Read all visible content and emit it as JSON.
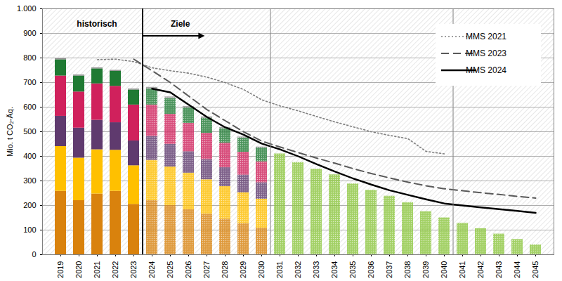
{
  "chart_data": {
    "type": "bar",
    "stacked": true,
    "y_label": "Mio. t CO₂-Äq.",
    "categories": [
      "2019",
      "2020",
      "2021",
      "2022",
      "2023",
      "2024",
      "2025",
      "2026",
      "2027",
      "2028",
      "2029",
      "2030",
      "2031",
      "2032",
      "2033",
      "2034",
      "2035",
      "2036",
      "2037",
      "2038",
      "2039",
      "2040",
      "2041",
      "2042",
      "2043",
      "2044",
      "2045"
    ],
    "ylim": [
      0,
      1000
    ],
    "yticks": [
      0,
      100,
      200,
      300,
      400,
      500,
      600,
      700,
      800,
      900,
      {
        "value": 1000,
        "label": "1.000"
      }
    ],
    "grid": true,
    "legend": "upper right",
    "periods": [
      {
        "label": "historisch",
        "from": "2019",
        "to": "2023"
      },
      {
        "label": "Ziele",
        "from": "2024",
        "to": "2030"
      }
    ],
    "dividers": [
      "2030",
      "2040"
    ],
    "series": [
      {
        "type": "bar",
        "color": "#d9820d",
        "values": [
          258,
          220,
          247,
          258,
          205,
          220,
          200,
          183,
          165,
          145,
          127,
          108,
          null,
          null,
          null,
          null,
          null,
          null,
          null,
          null,
          null,
          null,
          null,
          null,
          null,
          null,
          null
        ]
      },
      {
        "type": "bar",
        "color": "#ffc000",
        "values": [
          182,
          173,
          180,
          167,
          157,
          164,
          157,
          149,
          140,
          132,
          125,
          118,
          null,
          null,
          null,
          null,
          null,
          null,
          null,
          null,
          null,
          null,
          null,
          null,
          null,
          null,
          null
        ]
      },
      {
        "type": "bar",
        "color": "#5f3a6e",
        "values": [
          123,
          122,
          120,
          112,
          101,
          97,
          92,
          87,
          82,
          77,
          72,
          67,
          null,
          null,
          null,
          null,
          null,
          null,
          null,
          null,
          null,
          null,
          null,
          null,
          null,
          null,
          null
        ]
      },
      {
        "type": "bar",
        "color": "#d0215c",
        "values": [
          164,
          147,
          148,
          148,
          146,
          128,
          122,
          115,
          107,
          100,
          93,
          85,
          null,
          null,
          null,
          null,
          null,
          null,
          null,
          null,
          null,
          null,
          null,
          null,
          null,
          null,
          null
        ]
      },
      {
        "type": "bar",
        "color": "#1f7a33",
        "values": [
          66,
          65,
          61,
          61,
          61,
          65,
          64,
          63,
          61,
          59,
          57,
          56,
          null,
          null,
          null,
          null,
          null,
          null,
          null,
          null,
          null,
          null,
          null,
          null,
          null,
          null,
          null
        ]
      },
      {
        "type": "bar",
        "color": "#8c8c8c",
        "values": [
          4,
          4,
          4,
          4,
          4,
          7,
          7,
          6,
          6,
          5,
          5,
          4,
          null,
          null,
          null,
          null,
          null,
          null,
          null,
          null,
          null,
          null,
          null,
          null,
          null,
          null,
          null
        ]
      },
      {
        "type": "bar",
        "color": "#8cc63f",
        "values": [
          null,
          null,
          null,
          null,
          null,
          null,
          null,
          null,
          null,
          null,
          null,
          null,
          410,
          375,
          348,
          325,
          288,
          262,
          238,
          212,
          175,
          150,
          128,
          106,
          84,
          62,
          40
        ]
      },
      {
        "type": "line",
        "name": "MMS 2021",
        "color": "#7f7f7f",
        "line_style": "dotted",
        "values": [
          null,
          null,
          793,
          795,
          785,
          760,
          748,
          738,
          722,
          700,
          672,
          630,
          605,
          585,
          562,
          540,
          520,
          500,
          485,
          472,
          420,
          410,
          null,
          null,
          null,
          null,
          null
        ]
      },
      {
        "type": "line",
        "name": "MMS 2023",
        "color": "#595959",
        "line_style": "dashed",
        "values": [
          null,
          null,
          null,
          null,
          795,
          748,
          700,
          645,
          590,
          545,
          500,
          462,
          438,
          415,
          393,
          372,
          350,
          330,
          312,
          295,
          280,
          268,
          260,
          252,
          245,
          237,
          230
        ]
      },
      {
        "type": "line",
        "name": "MMS 2024",
        "color": "#000000",
        "line_style": "solid",
        "values": [
          null,
          null,
          null,
          null,
          null,
          675,
          660,
          610,
          560,
          518,
          488,
          452,
          428,
          400,
          368,
          338,
          310,
          285,
          262,
          243,
          225,
          208,
          200,
          192,
          185,
          178,
          170
        ]
      }
    ]
  }
}
